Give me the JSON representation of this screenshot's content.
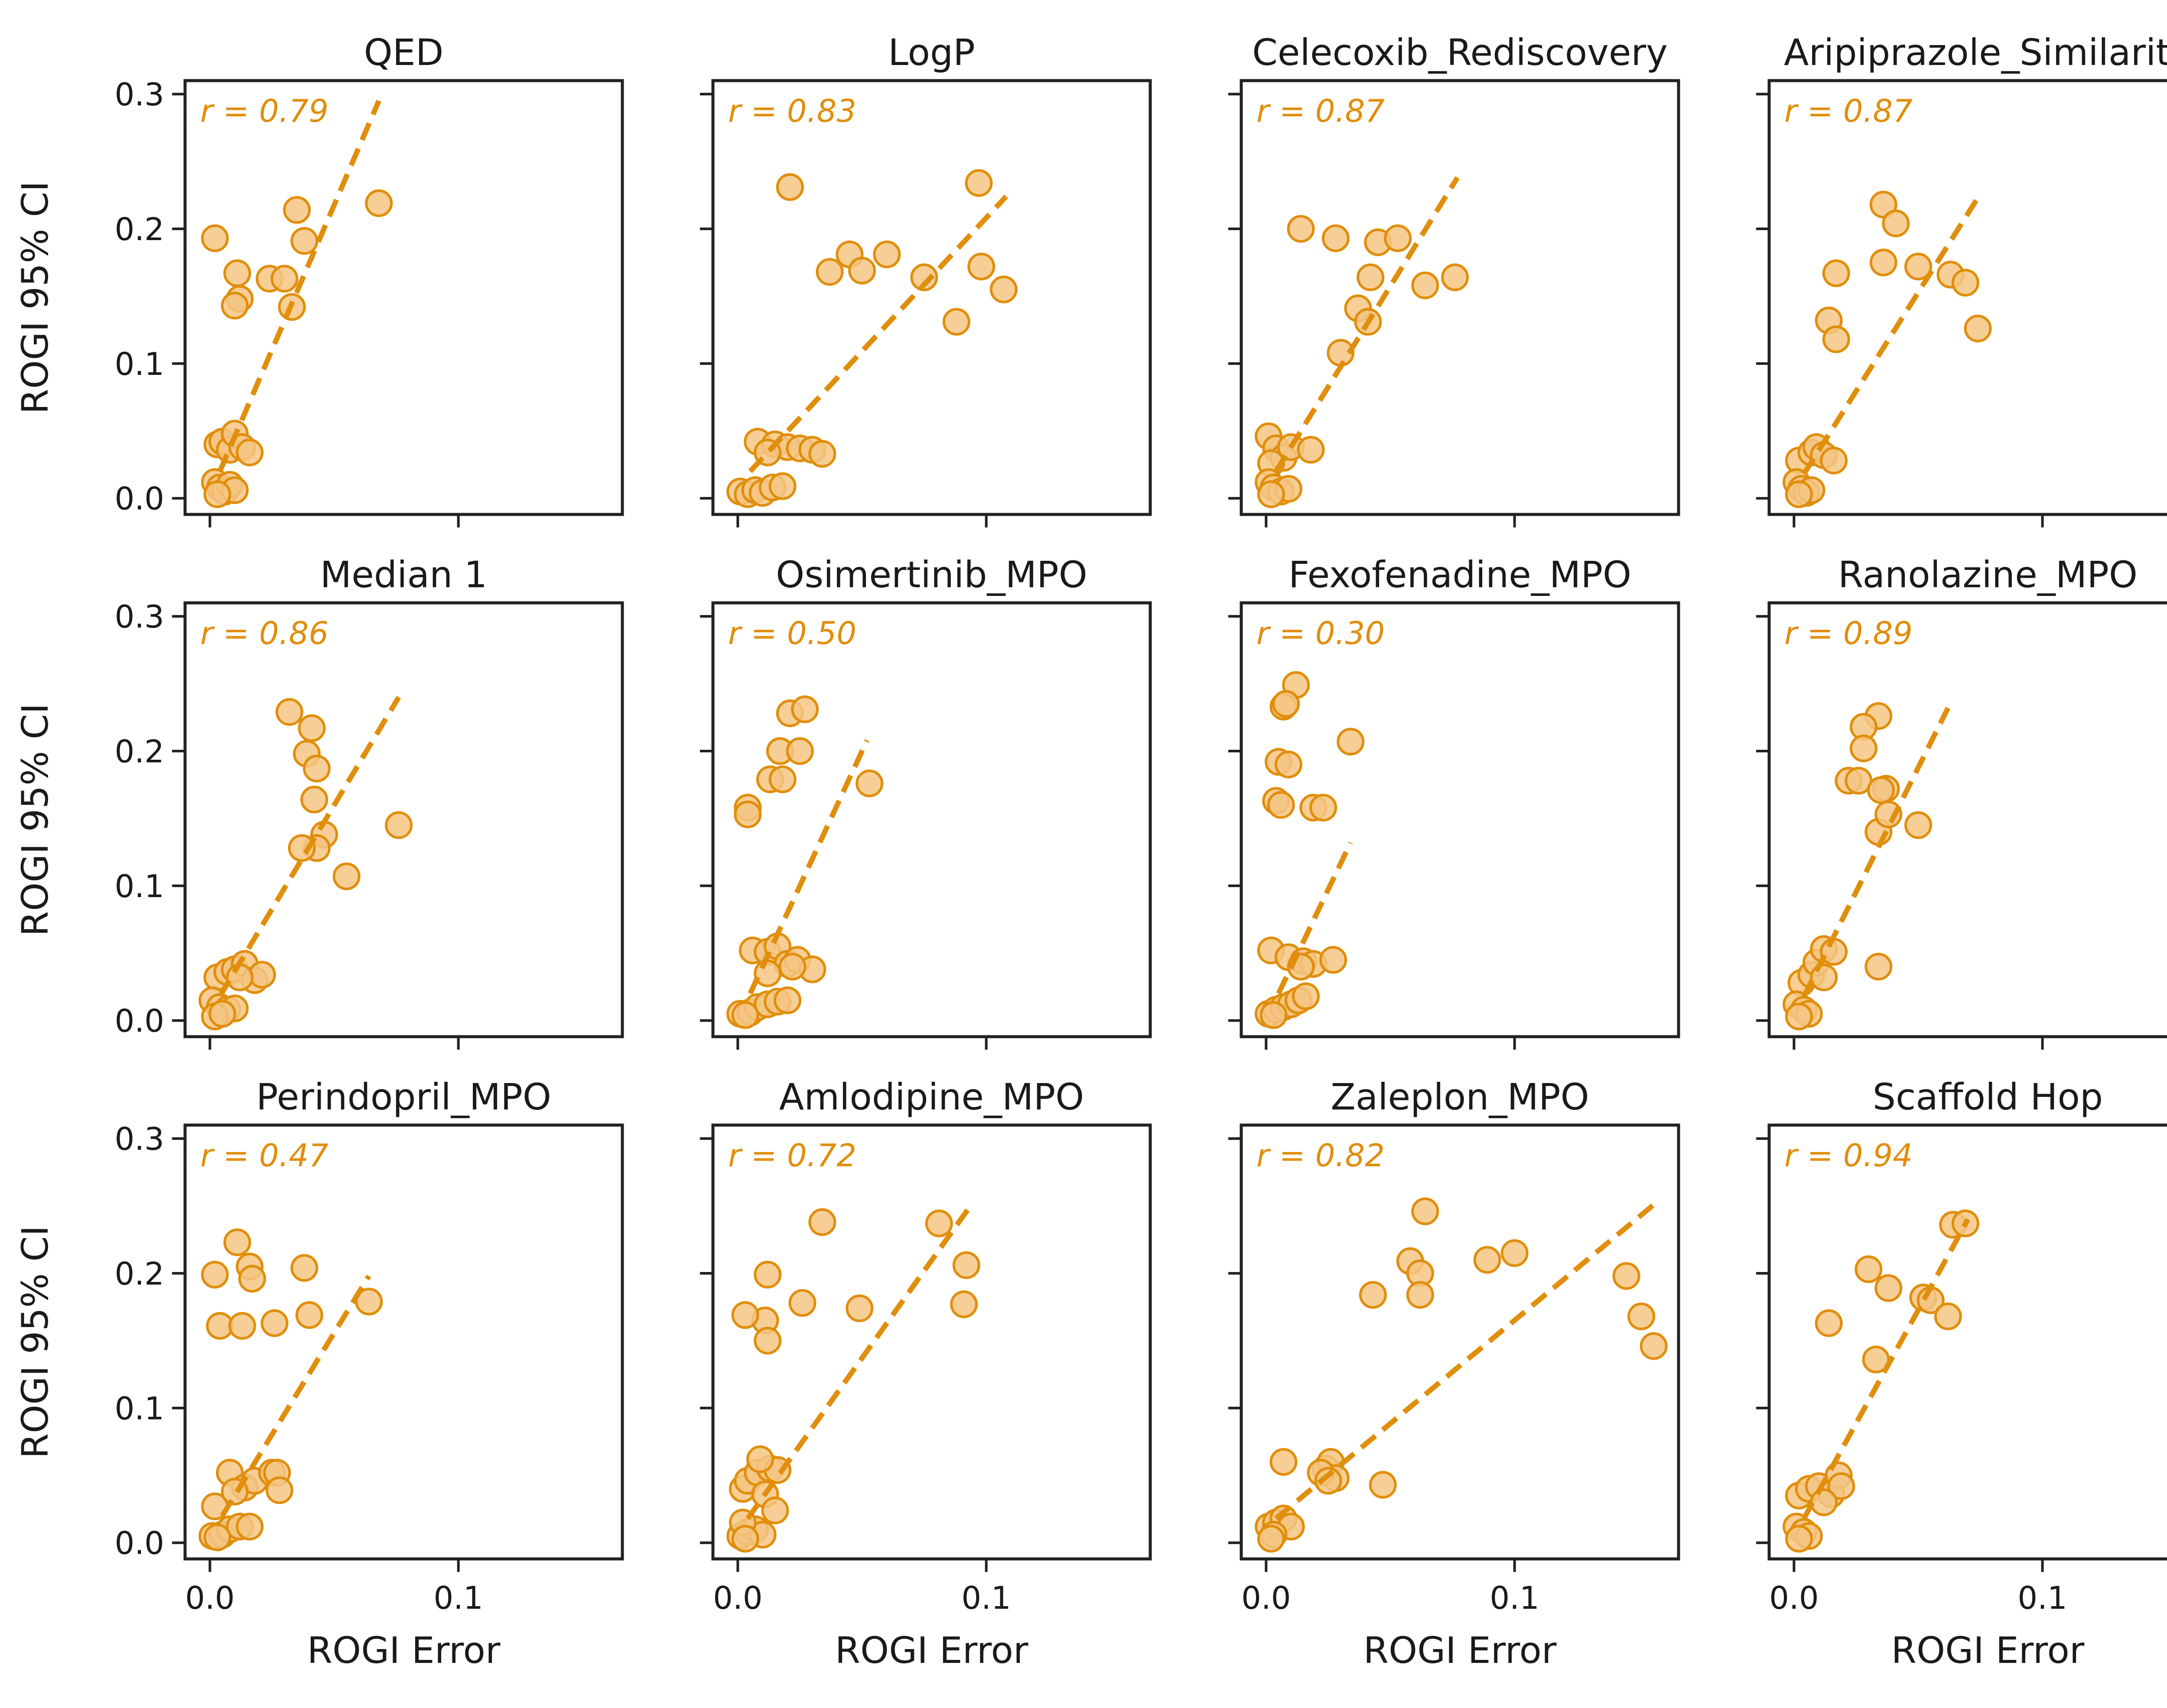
{
  "colors": {
    "accent": "#E08E0B",
    "marker_fill": "#F4C584",
    "axes": "#222222"
  },
  "shared": {
    "xlabel": "ROGI Error",
    "ylabel": "ROGI 95% CI",
    "xlim": [
      -0.01,
      0.166
    ],
    "ylim": [
      -0.012,
      0.31
    ],
    "xticks": [
      0.0,
      0.1
    ],
    "xtick_labels": [
      "0.0",
      "0.1"
    ],
    "yticks": [
      0.0,
      0.1,
      0.2,
      0.3
    ],
    "ytick_labels": [
      "0.0",
      "0.1",
      "0.2",
      "0.3"
    ],
    "grid": false,
    "legend": "none"
  },
  "chart_data": [
    {
      "type": "scatter",
      "title": "QED",
      "annotation": "r = 0.79",
      "trend_x": [
        0.004,
        0.068
      ],
      "trend_y": [
        0.02,
        0.295
      ],
      "points": [
        [
          0.002,
          0.193
        ],
        [
          0.011,
          0.167
        ],
        [
          0.012,
          0.148
        ],
        [
          0.01,
          0.143
        ],
        [
          0.024,
          0.163
        ],
        [
          0.03,
          0.163
        ],
        [
          0.035,
          0.214
        ],
        [
          0.038,
          0.191
        ],
        [
          0.033,
          0.142
        ],
        [
          0.068,
          0.219
        ],
        [
          0.003,
          0.04
        ],
        [
          0.005,
          0.042
        ],
        [
          0.008,
          0.036
        ],
        [
          0.01,
          0.048
        ],
        [
          0.013,
          0.038
        ],
        [
          0.016,
          0.034
        ],
        [
          0.002,
          0.012
        ],
        [
          0.004,
          0.008
        ],
        [
          0.006,
          0.005
        ],
        [
          0.008,
          0.01
        ],
        [
          0.01,
          0.006
        ],
        [
          0.003,
          0.003
        ]
      ]
    },
    {
      "type": "scatter",
      "title": "LogP",
      "annotation": "r = 0.83",
      "trend_x": [
        0.005,
        0.108
      ],
      "trend_y": [
        0.02,
        0.224
      ],
      "points": [
        [
          0.021,
          0.231
        ],
        [
          0.037,
          0.168
        ],
        [
          0.045,
          0.181
        ],
        [
          0.05,
          0.169
        ],
        [
          0.06,
          0.181
        ],
        [
          0.075,
          0.164
        ],
        [
          0.088,
          0.131
        ],
        [
          0.097,
          0.234
        ],
        [
          0.098,
          0.172
        ],
        [
          0.107,
          0.155
        ],
        [
          0.008,
          0.042
        ],
        [
          0.015,
          0.04
        ],
        [
          0.02,
          0.038
        ],
        [
          0.025,
          0.037
        ],
        [
          0.03,
          0.036
        ],
        [
          0.034,
          0.033
        ],
        [
          0.012,
          0.034
        ],
        [
          0.001,
          0.005
        ],
        [
          0.004,
          0.003
        ],
        [
          0.007,
          0.006
        ],
        [
          0.01,
          0.004
        ],
        [
          0.014,
          0.008
        ],
        [
          0.018,
          0.009
        ]
      ]
    },
    {
      "type": "scatter",
      "title": "Celecoxib_Rediscovery",
      "annotation": "r = 0.87",
      "trend_x": [
        0.004,
        0.077
      ],
      "trend_y": [
        0.02,
        0.238
      ],
      "points": [
        [
          0.014,
          0.2
        ],
        [
          0.028,
          0.193
        ],
        [
          0.045,
          0.19
        ],
        [
          0.053,
          0.193
        ],
        [
          0.042,
          0.164
        ],
        [
          0.064,
          0.158
        ],
        [
          0.076,
          0.164
        ],
        [
          0.037,
          0.141
        ],
        [
          0.041,
          0.131
        ],
        [
          0.03,
          0.108
        ],
        [
          0.001,
          0.046
        ],
        [
          0.004,
          0.037
        ],
        [
          0.007,
          0.03
        ],
        [
          0.01,
          0.038
        ],
        [
          0.018,
          0.036
        ],
        [
          0.002,
          0.026
        ],
        [
          0.001,
          0.012
        ],
        [
          0.003,
          0.008
        ],
        [
          0.006,
          0.005
        ],
        [
          0.009,
          0.007
        ],
        [
          0.002,
          0.003
        ]
      ]
    },
    {
      "type": "scatter",
      "title": "Aripiprazole_Similarity",
      "annotation": "r = 0.87",
      "trend_x": [
        0.004,
        0.075
      ],
      "trend_y": [
        0.018,
        0.226
      ],
      "points": [
        [
          0.036,
          0.218
        ],
        [
          0.041,
          0.204
        ],
        [
          0.036,
          0.175
        ],
        [
          0.017,
          0.167
        ],
        [
          0.05,
          0.172
        ],
        [
          0.063,
          0.166
        ],
        [
          0.069,
          0.16
        ],
        [
          0.074,
          0.126
        ],
        [
          0.014,
          0.132
        ],
        [
          0.017,
          0.118
        ],
        [
          0.002,
          0.028
        ],
        [
          0.007,
          0.034
        ],
        [
          0.009,
          0.038
        ],
        [
          0.012,
          0.032
        ],
        [
          0.016,
          0.028
        ],
        [
          0.001,
          0.012
        ],
        [
          0.003,
          0.007
        ],
        [
          0.005,
          0.004
        ],
        [
          0.007,
          0.006
        ],
        [
          0.002,
          0.003
        ]
      ]
    },
    {
      "type": "scatter",
      "title": "Median 1",
      "annotation": "r = 0.86",
      "trend_x": [
        0.004,
        0.076
      ],
      "trend_y": [
        0.018,
        0.24
      ],
      "points": [
        [
          0.032,
          0.229
        ],
        [
          0.041,
          0.217
        ],
        [
          0.039,
          0.198
        ],
        [
          0.043,
          0.187
        ],
        [
          0.042,
          0.164
        ],
        [
          0.046,
          0.138
        ],
        [
          0.043,
          0.128
        ],
        [
          0.037,
          0.128
        ],
        [
          0.055,
          0.107
        ],
        [
          0.076,
          0.145
        ],
        [
          0.003,
          0.032
        ],
        [
          0.007,
          0.036
        ],
        [
          0.01,
          0.038
        ],
        [
          0.014,
          0.042
        ],
        [
          0.018,
          0.03
        ],
        [
          0.021,
          0.034
        ],
        [
          0.012,
          0.032
        ],
        [
          0.001,
          0.015
        ],
        [
          0.004,
          0.01
        ],
        [
          0.007,
          0.008
        ],
        [
          0.01,
          0.009
        ],
        [
          0.002,
          0.003
        ],
        [
          0.005,
          0.005
        ]
      ]
    },
    {
      "type": "scatter",
      "title": "Osimertinib_MPO",
      "annotation": "r = 0.50",
      "trend_x": [
        0.005,
        0.052
      ],
      "trend_y": [
        0.02,
        0.208
      ],
      "points": [
        [
          0.021,
          0.228
        ],
        [
          0.027,
          0.231
        ],
        [
          0.017,
          0.2
        ],
        [
          0.025,
          0.2
        ],
        [
          0.013,
          0.179
        ],
        [
          0.018,
          0.179
        ],
        [
          0.004,
          0.158
        ],
        [
          0.004,
          0.153
        ],
        [
          0.053,
          0.176
        ],
        [
          0.006,
          0.052
        ],
        [
          0.012,
          0.051
        ],
        [
          0.016,
          0.055
        ],
        [
          0.02,
          0.042
        ],
        [
          0.024,
          0.045
        ],
        [
          0.03,
          0.038
        ],
        [
          0.022,
          0.04
        ],
        [
          0.012,
          0.035
        ],
        [
          0.001,
          0.005
        ],
        [
          0.005,
          0.006
        ],
        [
          0.008,
          0.01
        ],
        [
          0.012,
          0.012
        ],
        [
          0.016,
          0.014
        ],
        [
          0.02,
          0.015
        ],
        [
          0.003,
          0.004
        ]
      ]
    },
    {
      "type": "scatter",
      "title": "Fexofenadine_MPO",
      "annotation": "r = 0.30",
      "trend_x": [
        0.005,
        0.034
      ],
      "trend_y": [
        0.02,
        0.132
      ],
      "points": [
        [
          0.012,
          0.249
        ],
        [
          0.007,
          0.233
        ],
        [
          0.008,
          0.235
        ],
        [
          0.005,
          0.192
        ],
        [
          0.009,
          0.19
        ],
        [
          0.034,
          0.207
        ],
        [
          0.004,
          0.163
        ],
        [
          0.006,
          0.16
        ],
        [
          0.019,
          0.158
        ],
        [
          0.023,
          0.158
        ],
        [
          0.002,
          0.052
        ],
        [
          0.009,
          0.047
        ],
        [
          0.015,
          0.044
        ],
        [
          0.019,
          0.042
        ],
        [
          0.027,
          0.045
        ],
        [
          0.014,
          0.04
        ],
        [
          0.001,
          0.005
        ],
        [
          0.004,
          0.008
        ],
        [
          0.007,
          0.01
        ],
        [
          0.01,
          0.012
        ],
        [
          0.013,
          0.015
        ],
        [
          0.016,
          0.018
        ],
        [
          0.003,
          0.004
        ]
      ]
    },
    {
      "type": "scatter",
      "title": "Ranolazine_MPO",
      "annotation": "r = 0.89",
      "trend_x": [
        0.004,
        0.062
      ],
      "trend_y": [
        0.018,
        0.232
      ],
      "points": [
        [
          0.034,
          0.226
        ],
        [
          0.028,
          0.218
        ],
        [
          0.022,
          0.178
        ],
        [
          0.026,
          0.178
        ],
        [
          0.037,
          0.172
        ],
        [
          0.035,
          0.171
        ],
        [
          0.034,
          0.14
        ],
        [
          0.038,
          0.153
        ],
        [
          0.05,
          0.145
        ],
        [
          0.028,
          0.202
        ],
        [
          0.003,
          0.028
        ],
        [
          0.007,
          0.034
        ],
        [
          0.009,
          0.043
        ],
        [
          0.012,
          0.053
        ],
        [
          0.016,
          0.051
        ],
        [
          0.034,
          0.04
        ],
        [
          0.012,
          0.032
        ],
        [
          0.001,
          0.012
        ],
        [
          0.004,
          0.008
        ],
        [
          0.006,
          0.005
        ],
        [
          0.002,
          0.003
        ]
      ]
    },
    {
      "type": "scatter",
      "title": "Perindopril_MPO",
      "annotation": "r = 0.47",
      "trend_x": [
        0.005,
        0.064
      ],
      "trend_y": [
        0.02,
        0.198
      ],
      "points": [
        [
          0.011,
          0.223
        ],
        [
          0.016,
          0.205
        ],
        [
          0.017,
          0.196
        ],
        [
          0.038,
          0.204
        ],
        [
          0.002,
          0.199
        ],
        [
          0.004,
          0.161
        ],
        [
          0.013,
          0.161
        ],
        [
          0.026,
          0.163
        ],
        [
          0.04,
          0.169
        ],
        [
          0.064,
          0.179
        ],
        [
          0.002,
          0.027
        ],
        [
          0.008,
          0.052
        ],
        [
          0.014,
          0.041
        ],
        [
          0.018,
          0.046
        ],
        [
          0.025,
          0.052
        ],
        [
          0.027,
          0.052
        ],
        [
          0.028,
          0.039
        ],
        [
          0.01,
          0.038
        ],
        [
          0.001,
          0.005
        ],
        [
          0.005,
          0.006
        ],
        [
          0.008,
          0.01
        ],
        [
          0.012,
          0.012
        ],
        [
          0.016,
          0.012
        ],
        [
          0.003,
          0.004
        ]
      ]
    },
    {
      "type": "scatter",
      "title": "Amlodipine_MPO",
      "annotation": "r = 0.72",
      "trend_x": [
        0.004,
        0.094
      ],
      "trend_y": [
        0.018,
        0.251
      ],
      "points": [
        [
          0.034,
          0.238
        ],
        [
          0.081,
          0.237
        ],
        [
          0.092,
          0.206
        ],
        [
          0.091,
          0.177
        ],
        [
          0.012,
          0.199
        ],
        [
          0.011,
          0.165
        ],
        [
          0.026,
          0.178
        ],
        [
          0.049,
          0.174
        ],
        [
          0.003,
          0.169
        ],
        [
          0.012,
          0.15
        ],
        [
          0.002,
          0.04
        ],
        [
          0.004,
          0.046
        ],
        [
          0.008,
          0.052
        ],
        [
          0.013,
          0.055
        ],
        [
          0.016,
          0.054
        ],
        [
          0.009,
          0.062
        ],
        [
          0.011,
          0.036
        ],
        [
          0.015,
          0.024
        ],
        [
          0.001,
          0.005
        ],
        [
          0.004,
          0.008
        ],
        [
          0.007,
          0.01
        ],
        [
          0.01,
          0.006
        ],
        [
          0.002,
          0.015
        ],
        [
          0.003,
          0.003
        ]
      ]
    },
    {
      "type": "scatter",
      "title": "Zaleplon_MPO",
      "annotation": "r = 0.82",
      "trend_x": [
        0.004,
        0.158
      ],
      "trend_y": [
        0.018,
        0.254
      ],
      "points": [
        [
          0.064,
          0.246
        ],
        [
          0.058,
          0.209
        ],
        [
          0.062,
          0.2
        ],
        [
          0.062,
          0.184
        ],
        [
          0.043,
          0.184
        ],
        [
          0.089,
          0.21
        ],
        [
          0.1,
          0.215
        ],
        [
          0.145,
          0.198
        ],
        [
          0.151,
          0.168
        ],
        [
          0.156,
          0.146
        ],
        [
          0.007,
          0.06
        ],
        [
          0.024,
          0.055
        ],
        [
          0.026,
          0.06
        ],
        [
          0.028,
          0.048
        ],
        [
          0.022,
          0.052
        ],
        [
          0.025,
          0.046
        ],
        [
          0.047,
          0.043
        ],
        [
          0.001,
          0.012
        ],
        [
          0.004,
          0.015
        ],
        [
          0.007,
          0.018
        ],
        [
          0.01,
          0.012
        ],
        [
          0.003,
          0.006
        ],
        [
          0.002,
          0.003
        ]
      ]
    },
    {
      "type": "scatter",
      "title": "Scaffold Hop",
      "annotation": "r = 0.94",
      "trend_x": [
        0.004,
        0.07
      ],
      "trend_y": [
        0.018,
        0.24
      ],
      "points": [
        [
          0.064,
          0.236
        ],
        [
          0.069,
          0.237
        ],
        [
          0.03,
          0.203
        ],
        [
          0.038,
          0.189
        ],
        [
          0.052,
          0.182
        ],
        [
          0.055,
          0.18
        ],
        [
          0.062,
          0.168
        ],
        [
          0.014,
          0.163
        ],
        [
          0.033,
          0.136
        ],
        [
          0.002,
          0.035
        ],
        [
          0.006,
          0.04
        ],
        [
          0.01,
          0.042
        ],
        [
          0.015,
          0.036
        ],
        [
          0.018,
          0.05
        ],
        [
          0.019,
          0.042
        ],
        [
          0.012,
          0.03
        ],
        [
          0.001,
          0.012
        ],
        [
          0.004,
          0.008
        ],
        [
          0.006,
          0.005
        ],
        [
          0.002,
          0.003
        ]
      ]
    }
  ]
}
